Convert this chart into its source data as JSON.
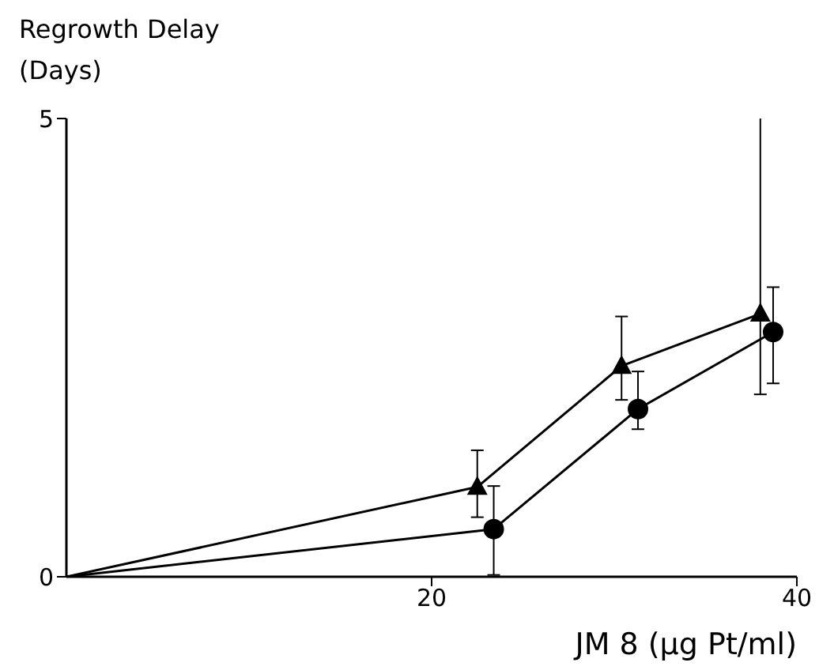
{
  "chart_data": {
    "type": "line",
    "xlabel": "JM 8 (µg Pt/ml)",
    "ylabel": "Regrowth Delay\n(Days)",
    "xlim": [
      0,
      40
    ],
    "ylim": [
      0,
      5
    ],
    "xticks": [
      20,
      40
    ],
    "yticks": [
      0,
      5
    ],
    "series": [
      {
        "color": "#000000",
        "marker": "triangle",
        "x": [
          0,
          22.5,
          30.4,
          38.0
        ],
        "values": [
          0,
          0.98,
          2.3,
          2.87
        ],
        "errors": [
          null,
          [
            0.65,
            1.38
          ],
          [
            1.93,
            2.84
          ],
          [
            1.99,
            5.04
          ]
        ]
      },
      {
        "color": "#000000",
        "marker": "circle",
        "x": [
          0,
          23.4,
          31.3,
          38.7
        ],
        "values": [
          0,
          0.52,
          1.83,
          2.67
        ],
        "errors": [
          null,
          [
            0.02,
            0.99
          ],
          [
            1.61,
            2.24
          ],
          [
            2.11,
            3.16
          ]
        ]
      }
    ]
  }
}
